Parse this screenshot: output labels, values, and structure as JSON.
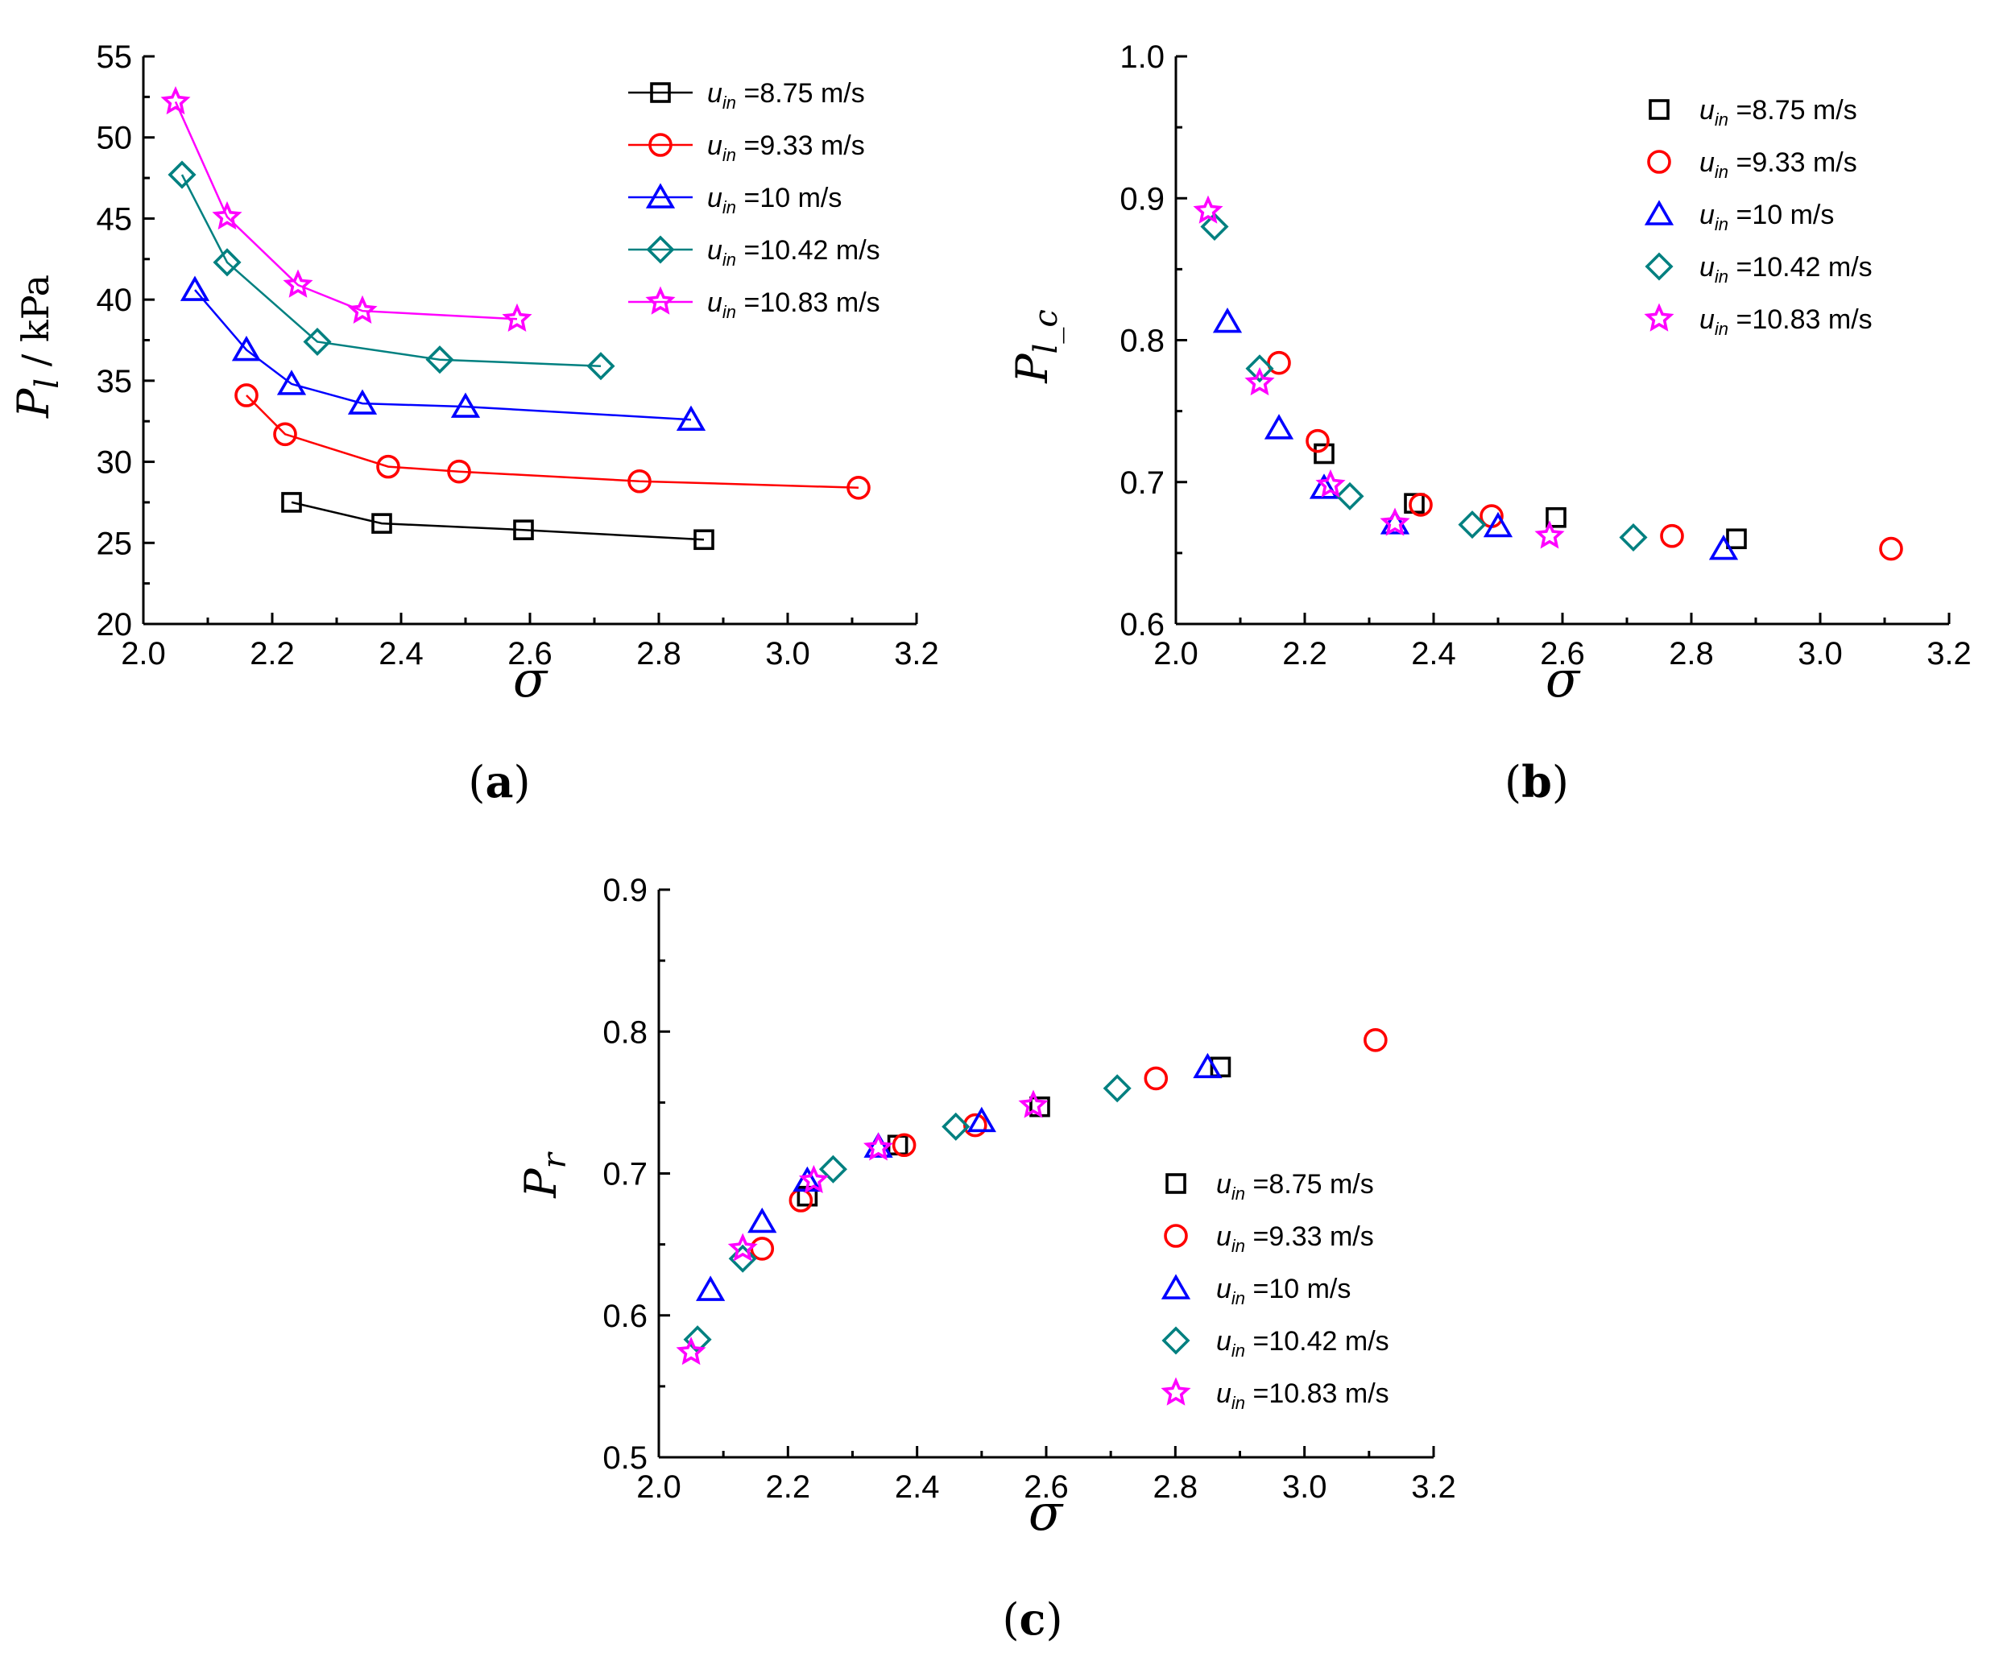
{
  "chart_data": [
    {
      "type": "line",
      "panel": "a",
      "panel_label": "a",
      "xlabel": "σ",
      "ylabel": {
        "main": "P",
        "sub": "l",
        "suffix": " / kPa"
      },
      "xlim": [
        2.0,
        3.2
      ],
      "ylim": [
        20,
        55
      ],
      "xticks": [
        2.0,
        2.2,
        2.4,
        2.6,
        2.8,
        3.0,
        3.2
      ],
      "xtick_labels": [
        "2.0",
        "2.2",
        "2.4",
        "2.6",
        "2.8",
        "3.0",
        "3.2"
      ],
      "yticks": [
        20,
        25,
        30,
        35,
        40,
        45,
        50,
        55
      ],
      "ytick_labels": [
        "20",
        "25",
        "30",
        "35",
        "40",
        "45",
        "50",
        "55"
      ],
      "legend_position": "top-right",
      "legend_lines": true,
      "series": [
        {
          "name": "u_in=8.75 m/s",
          "sym": "u",
          "sub": "in",
          "value": "=8.75 m/s",
          "marker": "square",
          "color": "#000000",
          "x": [
            2.23,
            2.37,
            2.59,
            2.87
          ],
          "y": [
            27.5,
            26.2,
            25.8,
            25.2
          ]
        },
        {
          "name": "u_in=9.33 m/s",
          "sym": "u",
          "sub": "in",
          "value": "=9.33 m/s",
          "marker": "circle",
          "color": "#ff0000",
          "x": [
            2.16,
            2.22,
            2.38,
            2.49,
            2.77,
            3.11
          ],
          "y": [
            34.1,
            31.7,
            29.7,
            29.4,
            28.8,
            28.4
          ]
        },
        {
          "name": "u_in=10 m/s",
          "sym": "u",
          "sub": "in",
          "value": "=10 m/s",
          "marker": "triangle",
          "color": "#0000ff",
          "x": [
            2.08,
            2.16,
            2.23,
            2.34,
            2.5,
            2.85
          ],
          "y": [
            40.6,
            36.9,
            34.8,
            33.6,
            33.4,
            32.6
          ]
        },
        {
          "name": "u_in=10.42 m/s",
          "sym": "u",
          "sub": "in",
          "value": "=10.42 m/s",
          "marker": "diamond",
          "color": "#008080",
          "x": [
            2.06,
            2.13,
            2.27,
            2.46,
            2.71
          ],
          "y": [
            47.7,
            42.3,
            37.4,
            36.3,
            35.9
          ]
        },
        {
          "name": "u_in=10.83 m/s",
          "sym": "u",
          "sub": "in",
          "value": "=10.83 m/s",
          "marker": "star",
          "color": "#ff00ff",
          "x": [
            2.05,
            2.13,
            2.24,
            2.34,
            2.58
          ],
          "y": [
            52.2,
            45.1,
            40.9,
            39.3,
            38.8
          ]
        }
      ]
    },
    {
      "type": "scatter",
      "panel": "b",
      "panel_label": "b",
      "xlabel": "σ",
      "ylabel": {
        "main": "P",
        "sub": "l_c",
        "suffix": ""
      },
      "xlim": [
        2.0,
        3.2
      ],
      "ylim": [
        0.6,
        1.0
      ],
      "xticks": [
        2.0,
        2.2,
        2.4,
        2.6,
        2.8,
        3.0,
        3.2
      ],
      "xtick_labels": [
        "2.0",
        "2.2",
        "2.4",
        "2.6",
        "2.8",
        "3.0",
        "3.2"
      ],
      "yticks": [
        0.6,
        0.7,
        0.8,
        0.9,
        1.0
      ],
      "ytick_labels": [
        "0.6",
        "0.7",
        "0.8",
        "0.9",
        "1.0"
      ],
      "legend_position": "top-right",
      "legend_lines": false,
      "series": [
        {
          "name": "u_in=8.75 m/s",
          "sym": "u",
          "sub": "in",
          "value": "=8.75 m/s",
          "marker": "square",
          "color": "#000000",
          "x": [
            2.23,
            2.37,
            2.59,
            2.87
          ],
          "y": [
            0.72,
            0.685,
            0.675,
            0.66
          ]
        },
        {
          "name": "u_in=9.33 m/s",
          "sym": "u",
          "sub": "in",
          "value": "=9.33 m/s",
          "marker": "circle",
          "color": "#ff0000",
          "x": [
            2.16,
            2.22,
            2.38,
            2.49,
            2.77,
            3.11
          ],
          "y": [
            0.784,
            0.729,
            0.684,
            0.676,
            0.662,
            0.653
          ]
        },
        {
          "name": "u_in=10 m/s",
          "sym": "u",
          "sub": "in",
          "value": "=10 m/s",
          "marker": "triangle",
          "color": "#0000ff",
          "x": [
            2.08,
            2.16,
            2.23,
            2.34,
            2.5,
            2.85
          ],
          "y": [
            0.813,
            0.738,
            0.696,
            0.671,
            0.669,
            0.653
          ]
        },
        {
          "name": "u_in=10.42 m/s",
          "sym": "u",
          "sub": "in",
          "value": "=10.42 m/s",
          "marker": "diamond",
          "color": "#008080",
          "x": [
            2.06,
            2.13,
            2.27,
            2.46,
            2.71
          ],
          "y": [
            0.88,
            0.78,
            0.69,
            0.67,
            0.661
          ]
        },
        {
          "name": "u_in=10.83 m/s",
          "sym": "u",
          "sub": "in",
          "value": "=10.83 m/s",
          "marker": "star",
          "color": "#ff00ff",
          "x": [
            2.05,
            2.13,
            2.24,
            2.34,
            2.58
          ],
          "y": [
            0.891,
            0.77,
            0.698,
            0.671,
            0.662
          ]
        }
      ]
    },
    {
      "type": "scatter",
      "panel": "c",
      "panel_label": "c",
      "xlabel": "σ",
      "ylabel": {
        "main": "P",
        "sub": "r",
        "suffix": ""
      },
      "xlim": [
        2.0,
        3.2
      ],
      "ylim": [
        0.5,
        0.9
      ],
      "xticks": [
        2.0,
        2.2,
        2.4,
        2.6,
        2.8,
        3.0,
        3.2
      ],
      "xtick_labels": [
        "2.0",
        "2.2",
        "2.4",
        "2.6",
        "2.8",
        "3.0",
        "3.2"
      ],
      "yticks": [
        0.5,
        0.6,
        0.7,
        0.8,
        0.9
      ],
      "ytick_labels": [
        "0.5",
        "0.6",
        "0.7",
        "0.8",
        "0.9"
      ],
      "legend_position": "bottom-right",
      "legend_lines": false,
      "series": [
        {
          "name": "u_in=8.75 m/s",
          "sym": "u",
          "sub": "in",
          "value": "=8.75 m/s",
          "marker": "square",
          "color": "#000000",
          "x": [
            2.23,
            2.37,
            2.59,
            2.87
          ],
          "y": [
            0.684,
            0.72,
            0.747,
            0.775
          ]
        },
        {
          "name": "u_in=9.33 m/s",
          "sym": "u",
          "sub": "in",
          "value": "=9.33 m/s",
          "marker": "circle",
          "color": "#ff0000",
          "x": [
            2.16,
            2.22,
            2.38,
            2.49,
            2.77,
            3.11
          ],
          "y": [
            0.647,
            0.681,
            0.72,
            0.734,
            0.767,
            0.794
          ]
        },
        {
          "name": "u_in=10 m/s",
          "sym": "u",
          "sub": "in",
          "value": "=10 m/s",
          "marker": "triangle",
          "color": "#0000ff",
          "x": [
            2.08,
            2.16,
            2.23,
            2.34,
            2.5,
            2.85
          ],
          "y": [
            0.618,
            0.666,
            0.695,
            0.719,
            0.737,
            0.775
          ]
        },
        {
          "name": "u_in=10.42 m/s",
          "sym": "u",
          "sub": "in",
          "value": "=10.42 m/s",
          "marker": "diamond",
          "color": "#008080",
          "x": [
            2.06,
            2.13,
            2.27,
            2.46,
            2.71
          ],
          "y": [
            0.583,
            0.64,
            0.703,
            0.733,
            0.76
          ]
        },
        {
          "name": "u_in=10.83 m/s",
          "sym": "u",
          "sub": "in",
          "value": "=10.83 m/s",
          "marker": "star",
          "color": "#ff00ff",
          "x": [
            2.05,
            2.13,
            2.24,
            2.34,
            2.58
          ],
          "y": [
            0.574,
            0.647,
            0.695,
            0.718,
            0.748
          ]
        }
      ]
    }
  ]
}
